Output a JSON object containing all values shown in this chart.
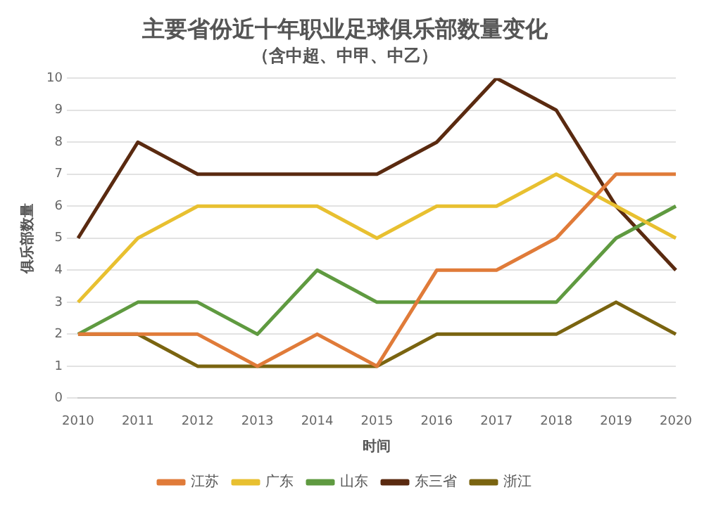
{
  "chart_data": {
    "type": "line",
    "title": "主要省份近十年职业足球俱乐部数量变化",
    "subtitle": "（含中超、中甲、中乙）",
    "xlabel": "时间",
    "ylabel": "俱乐部数量",
    "categories": [
      "2010",
      "2011",
      "2012",
      "2013",
      "2014",
      "2015",
      "2016",
      "2017",
      "2018",
      "2019",
      "2020"
    ],
    "series": [
      {
        "name": "江苏",
        "color": "#e07b39",
        "values": [
          2,
          2,
          2,
          1,
          2,
          1,
          4,
          4,
          5,
          7,
          7
        ]
      },
      {
        "name": "广东",
        "color": "#e8c030",
        "values": [
          3,
          5,
          6,
          6,
          6,
          5,
          6,
          6,
          7,
          6,
          5
        ]
      },
      {
        "name": "山东",
        "color": "#5f9a40",
        "values": [
          2,
          3,
          3,
          2,
          4,
          3,
          3,
          3,
          3,
          5,
          6
        ]
      },
      {
        "name": "东三省",
        "color": "#5a2a10",
        "values": [
          5,
          8,
          7,
          7,
          7,
          7,
          8,
          10,
          9,
          6,
          4
        ]
      },
      {
        "name": "浙江",
        "color": "#7a6410",
        "values": [
          2,
          2,
          1,
          1,
          1,
          1,
          2,
          2,
          2,
          3,
          2
        ]
      }
    ],
    "ylim": [
      0,
      10
    ],
    "yticks": [
      0,
      1,
      2,
      3,
      4,
      5,
      6,
      7,
      8,
      9,
      10
    ],
    "grid": "y",
    "legend": "bottom",
    "marker": "none",
    "line_style": "solid"
  }
}
